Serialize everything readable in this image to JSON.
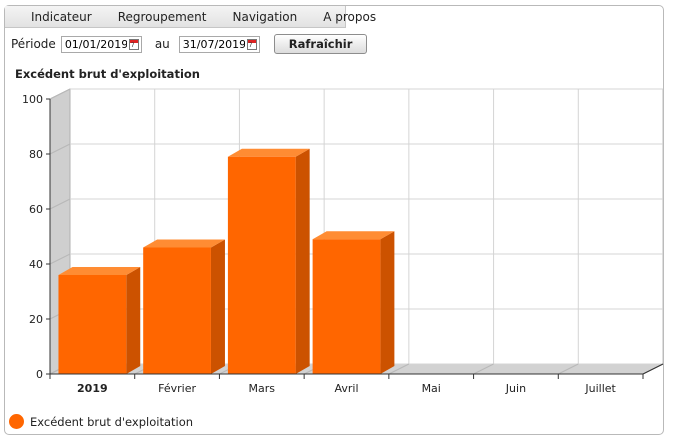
{
  "menu": {
    "items": [
      "Indicateur",
      "Regroupement",
      "Navigation",
      "A propos"
    ]
  },
  "toolbar": {
    "period_label": "Période",
    "start_date": "01/01/2019",
    "between_label": "au",
    "end_date": "31/07/2019",
    "calendar_glyph": "7",
    "refresh_label": "Rafraîchir"
  },
  "chart_data": {
    "type": "bar",
    "title": "Excédent brut d'exploitation",
    "categories": [
      "2019",
      "Février",
      "Mars",
      "Avril",
      "Mai",
      "Juin",
      "Juillet"
    ],
    "series": [
      {
        "name": "Excédent brut d'exploitation",
        "values": [
          36,
          46,
          79,
          49,
          0,
          0,
          0
        ]
      }
    ],
    "ylim": [
      0,
      100
    ],
    "yticks": [
      0,
      20,
      40,
      60,
      80,
      100
    ],
    "grid": true,
    "legend_position": "bottom-left",
    "colors": {
      "bar_front": "#ff6600",
      "bar_top": "#ff8c33",
      "bar_side": "#cc5200"
    }
  }
}
